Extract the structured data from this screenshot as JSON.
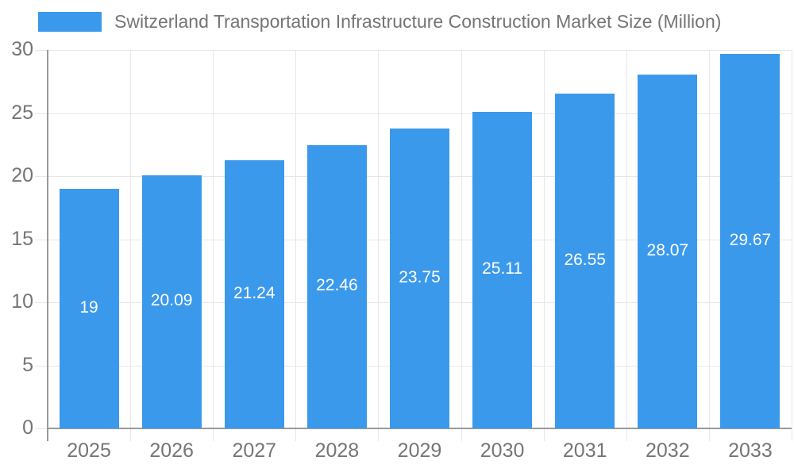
{
  "chart_data": {
    "type": "bar",
    "title": "Switzerland Transportation Infrastructure Construction Market Size (Million)",
    "legend": {
      "label": "Switzerland Transportation Infrastructure Construction Market Size (Million)",
      "position": "top-left"
    },
    "categories": [
      "2025",
      "2026",
      "2027",
      "2028",
      "2029",
      "2030",
      "2031",
      "2032",
      "2033"
    ],
    "values": [
      19,
      20.09,
      21.24,
      22.46,
      23.75,
      25.11,
      26.55,
      28.07,
      29.67
    ],
    "value_labels": [
      "19",
      "20.09",
      "21.24",
      "22.46",
      "23.75",
      "25.11",
      "26.55",
      "28.07",
      "29.67"
    ],
    "xlabel": "",
    "ylabel": "",
    "ylim": [
      0,
      30
    ],
    "yticks": [
      0,
      5,
      10,
      15,
      20,
      25,
      30
    ],
    "ytick_labels": [
      "0",
      "5",
      "10",
      "15",
      "20",
      "25",
      "30"
    ],
    "grid": true,
    "colors": {
      "bar": "#3b99ec",
      "grid": "#e7e7e7",
      "axis": "#9a9a9a",
      "tick_text": "#757575",
      "value_text": "#ffffff",
      "background": "#ffffff"
    }
  }
}
